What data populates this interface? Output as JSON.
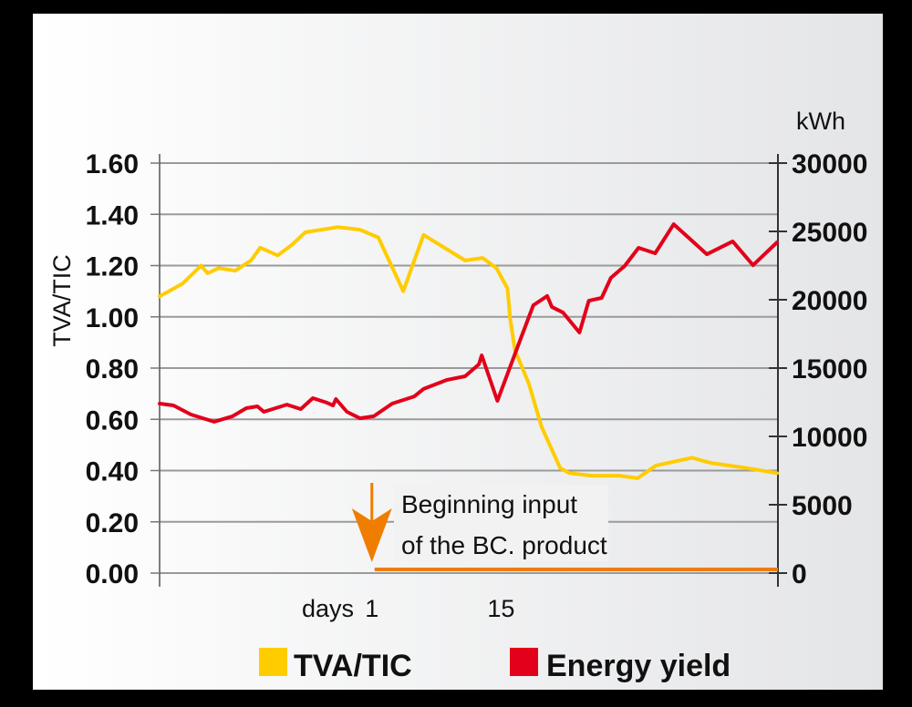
{
  "chart_data": {
    "type": "line",
    "title": "",
    "xlabel": "days",
    "x_ticks": [
      1,
      15
    ],
    "xlim": [
      -22,
      45
    ],
    "ylabel_left": "TVA/TIC",
    "ylim_left": [
      0,
      1.6
    ],
    "yticks_left": [
      "0.00",
      "0.20",
      "0.40",
      "0.60",
      "0.80",
      "1.00",
      "1.20",
      "1.40",
      "1.60"
    ],
    "ylabel_right": "kWh",
    "ylim_right": [
      0,
      30000
    ],
    "yticks_right": [
      "0",
      "5000",
      "10000",
      "15000",
      "20000",
      "25000",
      "30000"
    ],
    "grid": true,
    "legend_position": "bottom",
    "series": [
      {
        "name": "TVA/TIC",
        "axis": "left",
        "color": "#ffcc00",
        "x": [
          -22.0,
          -19.5,
          -17.5,
          -16.8,
          -15.6,
          -13.8,
          -12.1,
          -11.1,
          -9.2,
          -7.7,
          -6.2,
          -2.7,
          -0.3,
          1.7,
          4.4,
          6.6,
          11.1,
          13.0,
          14.5,
          15.7,
          16.0,
          16.5,
          18.0,
          19.4,
          21.4,
          22.4,
          24.9,
          27.8,
          29.8,
          31.8,
          35.7,
          37.7,
          41.6,
          44.9
        ],
        "y": [
          1.08,
          1.13,
          1.2,
          1.17,
          1.19,
          1.18,
          1.22,
          1.27,
          1.24,
          1.28,
          1.33,
          1.35,
          1.34,
          1.31,
          1.1,
          1.32,
          1.22,
          1.23,
          1.19,
          1.11,
          0.99,
          0.87,
          0.74,
          0.57,
          0.41,
          0.39,
          0.38,
          0.38,
          0.37,
          0.42,
          0.45,
          0.43,
          0.41,
          0.39
        ]
      },
      {
        "name": "Energy yield",
        "axis": "right",
        "color": "#e2001a",
        "x": [
          -22.0,
          -20.5,
          -18.6,
          -16.1,
          -14.1,
          -12.6,
          -11.4,
          -10.7,
          -8.2,
          -6.7,
          -5.4,
          -3.9,
          -3.2,
          -2.9,
          -1.7,
          -0.3,
          1.2,
          3.2,
          5.6,
          6.6,
          9.1,
          11.1,
          12.6,
          12.9,
          14.6,
          17.0,
          18.5,
          20.0,
          20.5,
          21.7,
          23.5,
          24.5,
          25.9,
          26.9,
          28.4,
          29.9,
          31.7,
          33.7,
          37.3,
          40.1,
          42.3,
          44.9
        ],
        "y": [
          12400,
          12270,
          11600,
          11070,
          11470,
          12070,
          12200,
          11800,
          12330,
          12000,
          12800,
          12470,
          12270,
          12730,
          11800,
          11330,
          11470,
          12400,
          12930,
          13470,
          14130,
          14400,
          15270,
          15930,
          12600,
          16930,
          19600,
          20270,
          19470,
          19070,
          17600,
          19930,
          20130,
          21600,
          22470,
          23800,
          23400,
          25530,
          23330,
          24270,
          22530,
          24200
        ]
      }
    ],
    "annotation": {
      "lines": [
        "Beginning input",
        "of the BC. product"
      ],
      "arrow_at_day": 1,
      "marker_color": "#ef7d00",
      "bar_from_day": 1,
      "bar_to_day": 45
    },
    "legend": [
      {
        "label": "TVA/TIC",
        "color": "#ffcc00"
      },
      {
        "label": "Energy yield",
        "color": "#e2001a"
      }
    ]
  }
}
